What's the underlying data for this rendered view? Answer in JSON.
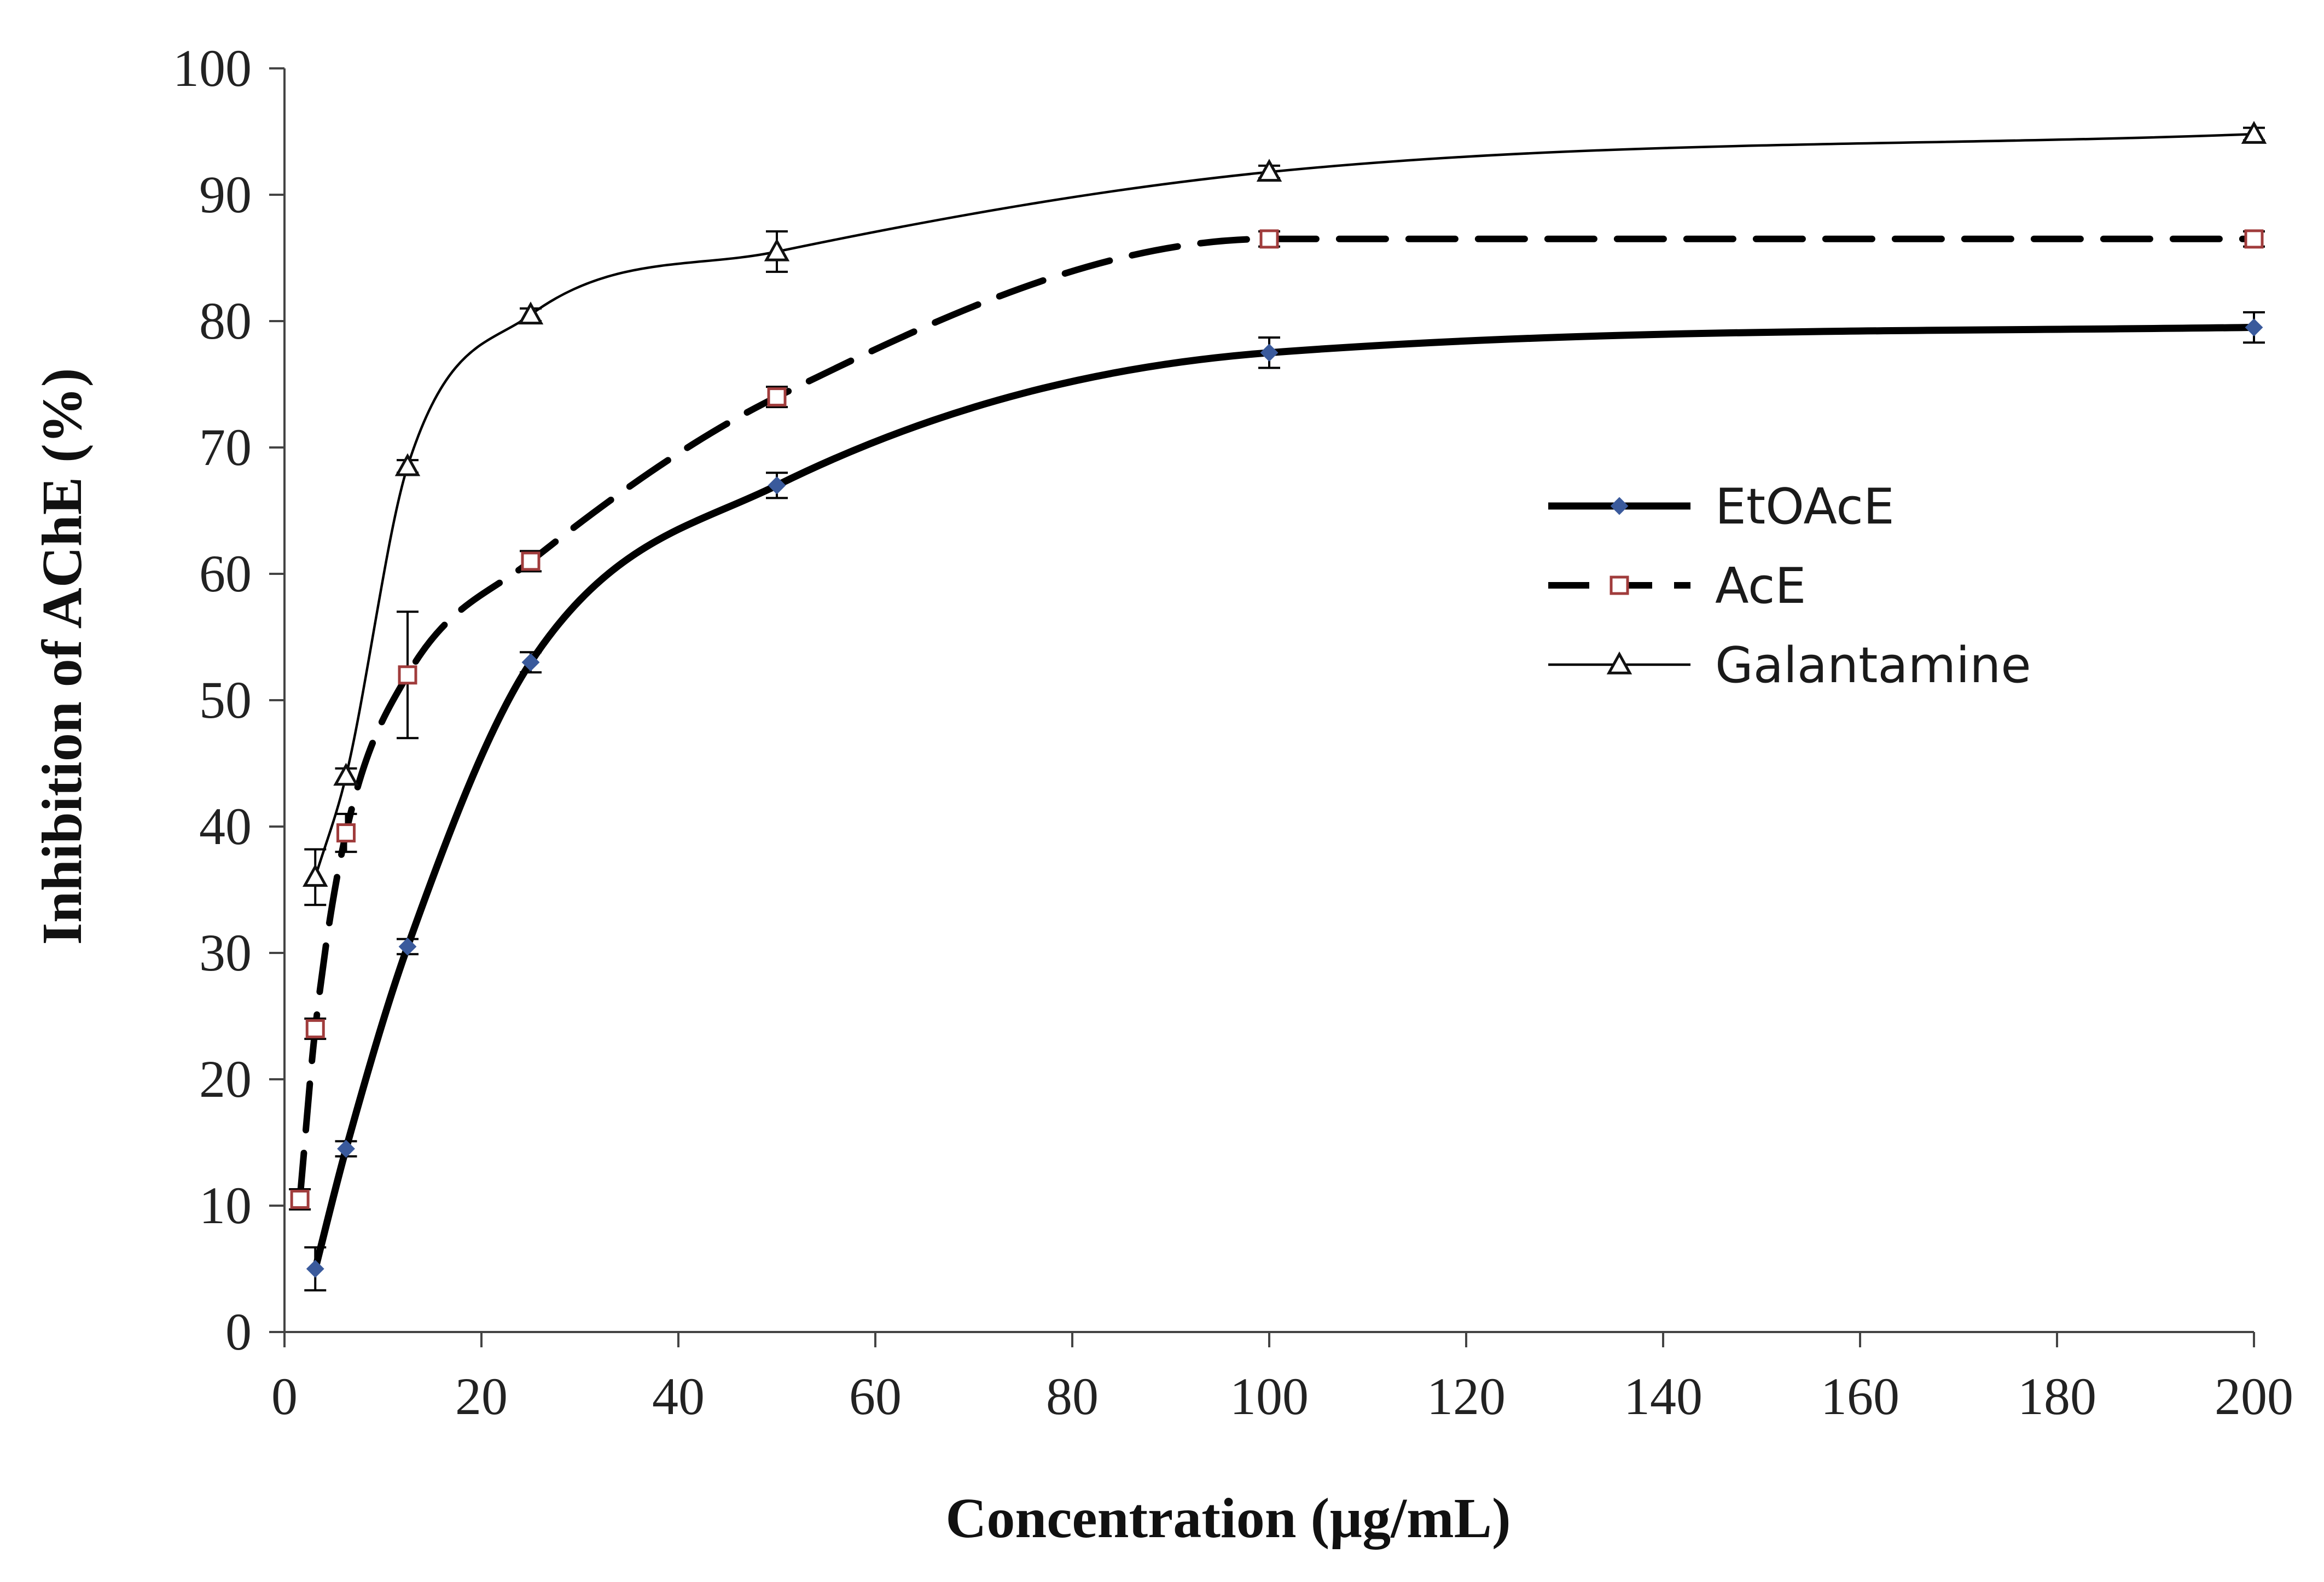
{
  "chart_data": {
    "type": "line",
    "title": "",
    "xlabel": "Concentration  (µg/mL)",
    "ylabel": "Inhibition  of  AChE  (%)",
    "xlim": [
      0,
      200
    ],
    "ylim": [
      0,
      100
    ],
    "x_ticks": [
      "0",
      "20",
      "40",
      "60",
      "80",
      "100",
      "120",
      "140",
      "160",
      "180",
      "200"
    ],
    "y_ticks": [
      "0",
      "10",
      "20",
      "30",
      "40",
      "50",
      "60",
      "70",
      "80",
      "90",
      "100"
    ],
    "grid": false,
    "legend_position": "right-middle",
    "series": [
      {
        "name": "EtOAcE",
        "line_style": "solid-thick",
        "marker": "diamond",
        "marker_color": "#3a5a9c",
        "x": [
          3.125,
          6.25,
          12.5,
          25,
          50,
          100,
          200
        ],
        "y": [
          5,
          14.5,
          30.5,
          53,
          67,
          77.5,
          79.5
        ],
        "error": [
          1.7,
          0.6,
          0.6,
          0.8,
          1.0,
          1.2,
          1.2
        ]
      },
      {
        "name": "AcE",
        "line_style": "dashed",
        "marker": "square-open",
        "marker_color": "#a03c3c",
        "x": [
          1.5625,
          3.125,
          6.25,
          12.5,
          25,
          50,
          100,
          200
        ],
        "y": [
          10.5,
          24,
          39.5,
          52,
          61,
          74,
          86.5,
          86.5
        ],
        "error": [
          0.8,
          0.8,
          1.5,
          5.0,
          0.8,
          0.8,
          0.6,
          0.6
        ]
      },
      {
        "name": "Galantamine",
        "line_style": "solid-thin",
        "marker": "triangle-open",
        "marker_color": "#111111",
        "x": [
          3.125,
          6.25,
          12.5,
          25,
          50,
          100,
          200
        ],
        "y": [
          36,
          44,
          68.5,
          80.5,
          85.5,
          91.8,
          94.8
        ],
        "error": [
          2.2,
          0.6,
          0.5,
          0.5,
          1.6,
          0.5,
          0.5
        ]
      }
    ]
  }
}
